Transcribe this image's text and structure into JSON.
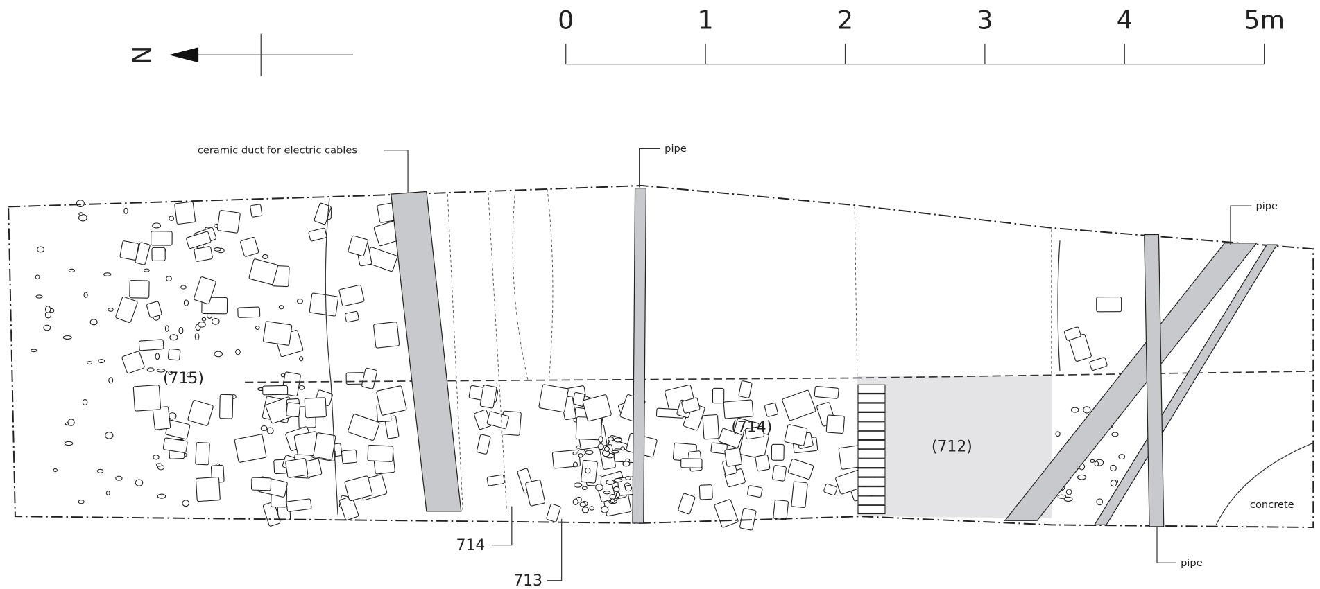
{
  "north_arrow": {
    "label": "N"
  },
  "scale_bar": {
    "ticks": [
      "0",
      "1",
      "2",
      "3",
      "4",
      "5m"
    ]
  },
  "labels": {
    "duct": "ceramic duct for electric cables",
    "pipe_top": "pipe",
    "pipe_right": "pipe",
    "pipe_bottom": "pipe",
    "context_715": "(715)",
    "context_714": "(714)",
    "context_712": "(712)",
    "feature_714": "714",
    "feature_713": "713",
    "concrete": "concrete"
  }
}
